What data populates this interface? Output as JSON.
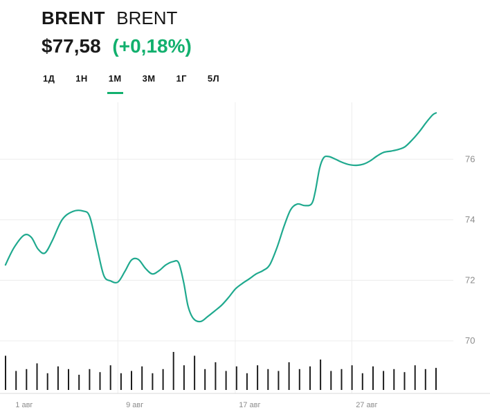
{
  "header": {
    "ticker": "BRENT",
    "name": "BRENT",
    "price": "$77,58",
    "change": "(+0,18%)",
    "accent_color": "#12b06e"
  },
  "tabs": {
    "items": [
      {
        "id": "1d",
        "label": "1Д",
        "active": false
      },
      {
        "id": "1w",
        "label": "1Н",
        "active": false
      },
      {
        "id": "1m",
        "label": "1М",
        "active": true
      },
      {
        "id": "3m",
        "label": "3М",
        "active": false
      },
      {
        "id": "1y",
        "label": "1Г",
        "active": false
      },
      {
        "id": "5y",
        "label": "5Л",
        "active": false
      }
    ]
  },
  "chart_data": {
    "type": "line",
    "title": "BRENT price — 1 month",
    "xlabel": "",
    "ylabel": "",
    "legend": "none",
    "grid": true,
    "line_color": "#1fa98e",
    "volume_color": "#1d1d1d",
    "grid_color": "#ececec",
    "axis_color": "#d9d9d9",
    "tick_label_color": "#8c8c8c",
    "ylim": [
      68.4,
      77.88
    ],
    "y_ticks": [
      76,
      74,
      72,
      70
    ],
    "x_gridlines": [
      0.26,
      0.519,
      0.776
    ],
    "x_ticks": [
      {
        "label": "1 авг",
        "pos": 0.034
      },
      {
        "label": "9 авг",
        "pos": 0.278
      },
      {
        "label": "17 авг",
        "pos": 0.527
      },
      {
        "label": "27 авг",
        "pos": 0.785
      }
    ],
    "points": [
      [
        0.012,
        72.51
      ],
      [
        0.031,
        73.08
      ],
      [
        0.053,
        73.49
      ],
      [
        0.069,
        73.42
      ],
      [
        0.084,
        73.03
      ],
      [
        0.099,
        72.9
      ],
      [
        0.115,
        73.3
      ],
      [
        0.137,
        74.0
      ],
      [
        0.16,
        74.27
      ],
      [
        0.183,
        74.29
      ],
      [
        0.198,
        74.1
      ],
      [
        0.214,
        73.08
      ],
      [
        0.229,
        72.16
      ],
      [
        0.244,
        71.98
      ],
      [
        0.26,
        71.94
      ],
      [
        0.275,
        72.28
      ],
      [
        0.29,
        72.67
      ],
      [
        0.305,
        72.69
      ],
      [
        0.321,
        72.39
      ],
      [
        0.336,
        72.21
      ],
      [
        0.351,
        72.32
      ],
      [
        0.366,
        72.51
      ],
      [
        0.382,
        72.62
      ],
      [
        0.394,
        72.58
      ],
      [
        0.405,
        71.94
      ],
      [
        0.415,
        71.14
      ],
      [
        0.427,
        70.73
      ],
      [
        0.443,
        70.64
      ],
      [
        0.458,
        70.8
      ],
      [
        0.473,
        70.98
      ],
      [
        0.489,
        71.18
      ],
      [
        0.504,
        71.43
      ],
      [
        0.519,
        71.71
      ],
      [
        0.534,
        71.89
      ],
      [
        0.55,
        72.05
      ],
      [
        0.565,
        72.21
      ],
      [
        0.58,
        72.32
      ],
      [
        0.595,
        72.51
      ],
      [
        0.611,
        73.08
      ],
      [
        0.626,
        73.76
      ],
      [
        0.641,
        74.33
      ],
      [
        0.656,
        74.52
      ],
      [
        0.672,
        74.47
      ],
      [
        0.687,
        74.52
      ],
      [
        0.695,
        74.9
      ],
      [
        0.705,
        75.7
      ],
      [
        0.714,
        76.05
      ],
      [
        0.725,
        76.09
      ],
      [
        0.74,
        76.0
      ],
      [
        0.756,
        75.89
      ],
      [
        0.771,
        75.82
      ],
      [
        0.786,
        75.8
      ],
      [
        0.802,
        75.84
      ],
      [
        0.817,
        75.95
      ],
      [
        0.832,
        76.11
      ],
      [
        0.847,
        76.23
      ],
      [
        0.863,
        76.27
      ],
      [
        0.878,
        76.32
      ],
      [
        0.893,
        76.41
      ],
      [
        0.908,
        76.62
      ],
      [
        0.924,
        76.89
      ],
      [
        0.939,
        77.19
      ],
      [
        0.954,
        77.46
      ],
      [
        0.962,
        77.53
      ]
    ],
    "volume_bars": [
      0.9,
      0.5,
      0.55,
      0.7,
      0.44,
      0.62,
      0.55,
      0.4,
      0.55,
      0.47,
      0.65,
      0.44,
      0.5,
      0.62,
      0.44,
      0.55,
      1.0,
      0.65,
      0.9,
      0.55,
      0.73,
      0.5,
      0.62,
      0.44,
      0.65,
      0.55,
      0.5,
      0.73,
      0.55,
      0.62,
      0.8,
      0.5,
      0.55,
      0.65,
      0.44,
      0.62,
      0.5,
      0.55,
      0.47,
      0.65,
      0.55,
      0.58
    ]
  }
}
